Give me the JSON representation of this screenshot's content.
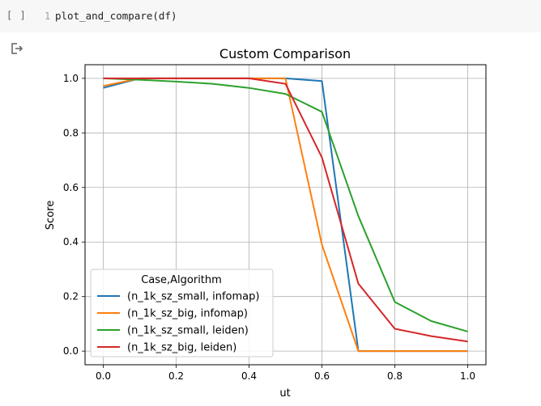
{
  "cell": {
    "run_indicator": "[ ]",
    "line_number": "1",
    "code": "plot_and_compare(df)"
  },
  "output": {
    "icon": "output-redirect-icon"
  },
  "chart_data": {
    "type": "line",
    "title": "Custom Comparison",
    "xlabel": "ut",
    "ylabel": "Score",
    "xlim": [
      -0.05,
      1.05
    ],
    "ylim": [
      -0.05,
      1.05
    ],
    "xticks": [
      "0.0",
      "0.2",
      "0.4",
      "0.6",
      "0.8",
      "1.0"
    ],
    "yticks": [
      "0.0",
      "0.2",
      "0.4",
      "0.6",
      "0.8",
      "1.0"
    ],
    "grid": true,
    "legend": {
      "title": "Case,Algorithm",
      "placement": "lower-left"
    },
    "x": [
      0.0,
      0.1,
      0.2,
      0.3,
      0.4,
      0.5,
      0.6,
      0.7,
      0.8,
      0.9,
      1.0
    ],
    "series": [
      {
        "name": "(n_1k_sz_small, infomap)",
        "color": "#1f77b4",
        "values": [
          0.965,
          1.0,
          1.0,
          1.0,
          1.0,
          1.0,
          0.99,
          0.0,
          0.0,
          0.0,
          0.0
        ]
      },
      {
        "name": "(n_1k_sz_big, infomap)",
        "color": "#ff7f0e",
        "values": [
          0.972,
          1.0,
          1.0,
          1.0,
          1.0,
          1.0,
          0.39,
          0.0,
          0.0,
          0.0,
          0.0
        ]
      },
      {
        "name": "(n_1k_sz_small, leiden)",
        "color": "#2ca02c",
        "values": [
          1.0,
          0.995,
          0.988,
          0.98,
          0.965,
          0.943,
          0.877,
          0.495,
          0.18,
          0.11,
          0.072
        ]
      },
      {
        "name": "(n_1k_sz_big, leiden)",
        "color": "#d62728",
        "values": [
          1.0,
          1.0,
          1.0,
          1.0,
          1.0,
          0.98,
          0.71,
          0.247,
          0.082,
          0.055,
          0.035
        ]
      }
    ]
  }
}
